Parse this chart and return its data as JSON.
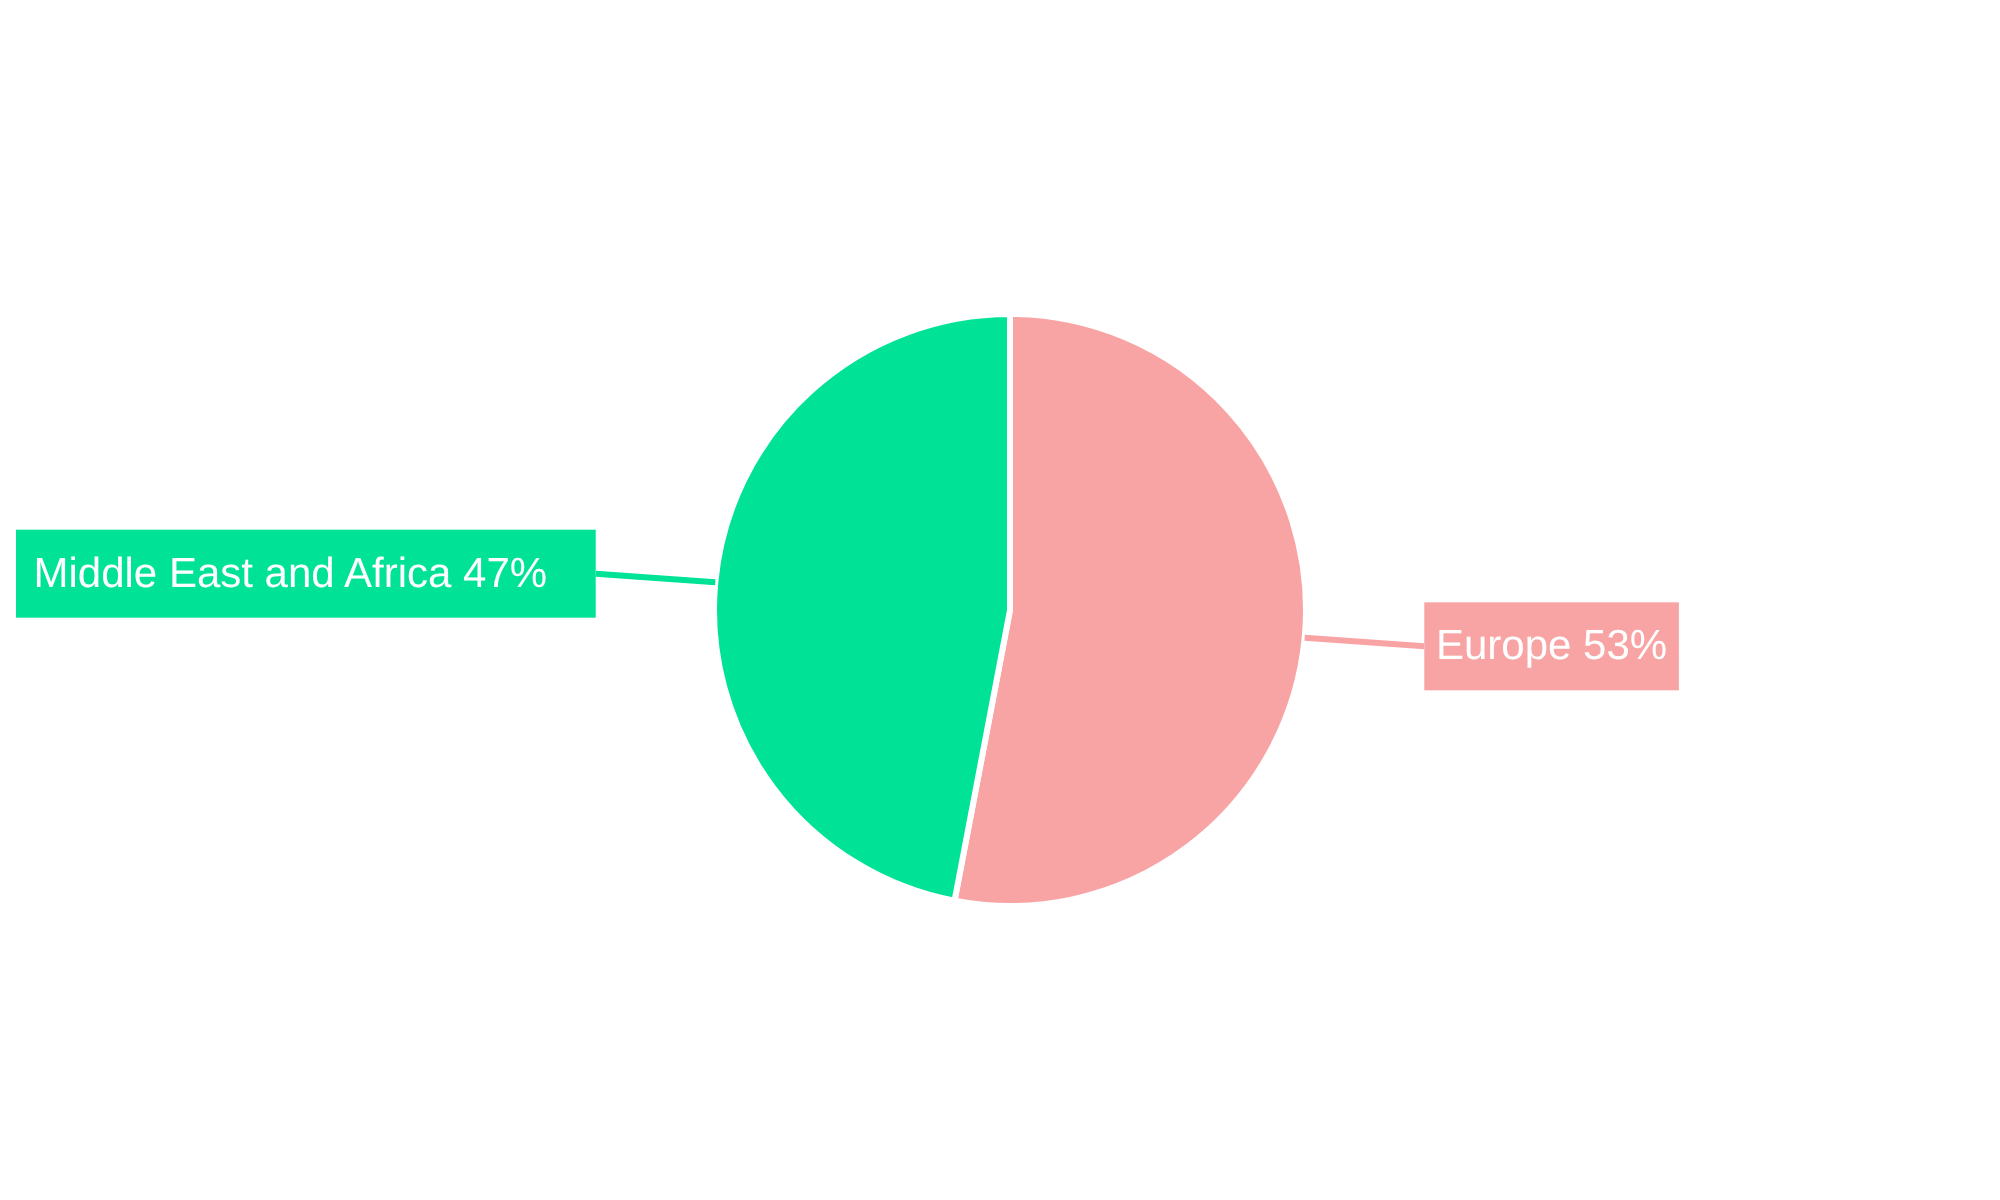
{
  "chart_data": {
    "type": "pie",
    "categories": [
      "Europe",
      "Middle East and Africa"
    ],
    "values": [
      53,
      47
    ],
    "colors": [
      "#f9a4a4",
      "#00e396"
    ],
    "value_labels": [
      "53%",
      "47%"
    ]
  }
}
